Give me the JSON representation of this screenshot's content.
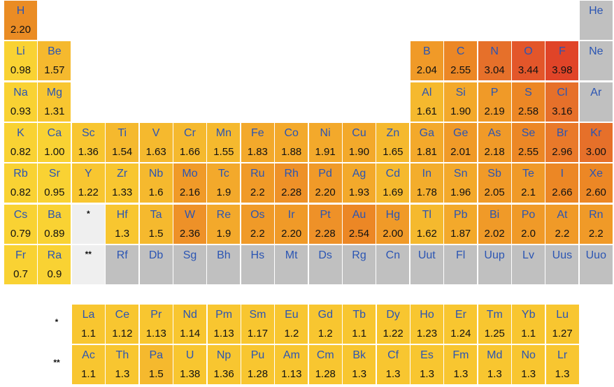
{
  "grid_rows": [
    [
      {
        "s": "H",
        "v": "2.20",
        "c": "#ea8c24"
      },
      {},
      {},
      {},
      {},
      {},
      {},
      {},
      {},
      {},
      {},
      {},
      {},
      {},
      {},
      {},
      {},
      {
        "s": "He",
        "c": "#c0c0c0"
      }
    ],
    [
      {
        "s": "Li",
        "v": "0.98",
        "c": "#f9d233"
      },
      {
        "s": "Be",
        "v": "1.57",
        "c": "#f5b92e"
      },
      {},
      {},
      {},
      {},
      {},
      {},
      {},
      {},
      {},
      {},
      {
        "s": "B",
        "v": "2.04",
        "c": "#f09a28"
      },
      {
        "s": "C",
        "v": "2.55",
        "c": "#ec8725"
      },
      {
        "s": "N",
        "v": "3.04",
        "c": "#e6702a"
      },
      {
        "s": "O",
        "v": "3.44",
        "c": "#e3562a"
      },
      {
        "s": "F",
        "v": "3.98",
        "c": "#e04428"
      },
      {
        "s": "Ne",
        "c": "#c0c0c0"
      }
    ],
    [
      {
        "s": "Na",
        "v": "0.93",
        "c": "#f9d233"
      },
      {
        "s": "Mg",
        "v": "1.31",
        "c": "#f8c630"
      },
      {},
      {},
      {},
      {},
      {},
      {},
      {},
      {},
      {},
      {},
      {
        "s": "Al",
        "v": "1.61",
        "c": "#f5b92e"
      },
      {
        "s": "Si",
        "v": "1.90",
        "c": "#f3a92b"
      },
      {
        "s": "P",
        "v": "2.19",
        "c": "#f09a28"
      },
      {
        "s": "S",
        "v": "2.58",
        "c": "#ec8725"
      },
      {
        "s": "Cl",
        "v": "3.16",
        "c": "#e6702a"
      },
      {
        "s": "Ar",
        "c": "#c0c0c0"
      }
    ],
    [
      {
        "s": "K",
        "v": "0.82",
        "c": "#f9d233"
      },
      {
        "s": "Ca",
        "v": "1.00",
        "c": "#f9d233"
      },
      {
        "s": "Sc",
        "v": "1.36",
        "c": "#f8c630"
      },
      {
        "s": "Ti",
        "v": "1.54",
        "c": "#f5b92e"
      },
      {
        "s": "V",
        "v": "1.63",
        "c": "#f5b92e"
      },
      {
        "s": "Cr",
        "v": "1.66",
        "c": "#f5b92e"
      },
      {
        "s": "Mn",
        "v": "1.55",
        "c": "#f5b92e"
      },
      {
        "s": "Fe",
        "v": "1.83",
        "c": "#f3a92b"
      },
      {
        "s": "Co",
        "v": "1.88",
        "c": "#f3a92b"
      },
      {
        "s": "Ni",
        "v": "1.91",
        "c": "#f3a92b"
      },
      {
        "s": "Cu",
        "v": "1.90",
        "c": "#f3a92b"
      },
      {
        "s": "Zn",
        "v": "1.65",
        "c": "#f5b92e"
      },
      {
        "s": "Ga",
        "v": "1.81",
        "c": "#f3a92b"
      },
      {
        "s": "Ge",
        "v": "2.01",
        "c": "#f09a28"
      },
      {
        "s": "As",
        "v": "2.18",
        "c": "#f09a28"
      },
      {
        "s": "Se",
        "v": "2.55",
        "c": "#ec8725"
      },
      {
        "s": "Br",
        "v": "2.96",
        "c": "#e9792a"
      },
      {
        "s": "Kr",
        "v": "3.00",
        "c": "#e6702a"
      }
    ],
    [
      {
        "s": "Rb",
        "v": "0.82",
        "c": "#f9d233"
      },
      {
        "s": "Sr",
        "v": "0.95",
        "c": "#f9d233"
      },
      {
        "s": "Y",
        "v": "1.22",
        "c": "#f8c630"
      },
      {
        "s": "Zr",
        "v": "1.33",
        "c": "#f8c630"
      },
      {
        "s": "Nb",
        "v": "1.6",
        "c": "#f5b92e"
      },
      {
        "s": "Mo",
        "v": "2.16",
        "c": "#f09a28"
      },
      {
        "s": "Tc",
        "v": "1.9",
        "c": "#f3a92b"
      },
      {
        "s": "Ru",
        "v": "2.2",
        "c": "#f09a28"
      },
      {
        "s": "Rh",
        "v": "2.28",
        "c": "#ee9128"
      },
      {
        "s": "Pd",
        "v": "2.20",
        "c": "#f09a28"
      },
      {
        "s": "Ag",
        "v": "1.93",
        "c": "#f3a92b"
      },
      {
        "s": "Cd",
        "v": "1.69",
        "c": "#f5b92e"
      },
      {
        "s": "In",
        "v": "1.78",
        "c": "#f3ad2c"
      },
      {
        "s": "Sn",
        "v": "1.96",
        "c": "#f3a92b"
      },
      {
        "s": "Sb",
        "v": "2.05",
        "c": "#f09a28"
      },
      {
        "s": "Te",
        "v": "2.1",
        "c": "#f09a28"
      },
      {
        "s": "I",
        "v": "2.66",
        "c": "#ec8725"
      },
      {
        "s": "Xe",
        "v": "2.60",
        "c": "#ec8725"
      }
    ],
    [
      {
        "s": "Cs",
        "v": "0.79",
        "c": "#f9d233"
      },
      {
        "s": "Ba",
        "v": "0.89",
        "c": "#f9d233"
      },
      {
        "s": "*",
        "c": "#efefef",
        "m": true
      },
      {
        "s": "Hf",
        "v": "1.3",
        "c": "#f8c630"
      },
      {
        "s": "Ta",
        "v": "1.5",
        "c": "#f5b92e"
      },
      {
        "s": "W",
        "v": "2.36",
        "c": "#ee9128"
      },
      {
        "s": "Re",
        "v": "1.9",
        "c": "#f3a92b"
      },
      {
        "s": "Os",
        "v": "2.2",
        "c": "#f09a28"
      },
      {
        "s": "Ir",
        "v": "2.20",
        "c": "#f09a28"
      },
      {
        "s": "Pt",
        "v": "2.28",
        "c": "#ee9128"
      },
      {
        "s": "Au",
        "v": "2.54",
        "c": "#ec8725"
      },
      {
        "s": "Hg",
        "v": "2.00",
        "c": "#f09a28"
      },
      {
        "s": "Tl",
        "v": "1.62",
        "c": "#f5b92e"
      },
      {
        "s": "Pb",
        "v": "1.87",
        "c": "#f3a92b"
      },
      {
        "s": "Bi",
        "v": "2.02",
        "c": "#f09a28"
      },
      {
        "s": "Po",
        "v": "2.0",
        "c": "#f09a28"
      },
      {
        "s": "At",
        "v": "2.2",
        "c": "#f09a28"
      },
      {
        "s": "Rn",
        "v": "2.2",
        "c": "#f09a28"
      }
    ],
    [
      {
        "s": "Fr",
        "v": "0.7",
        "c": "#f9d233"
      },
      {
        "s": "Ra",
        "v": "0.9",
        "c": "#f9d233"
      },
      {
        "s": "**",
        "c": "#efefef",
        "m": true
      },
      {
        "s": "Rf",
        "c": "#c0c0c0"
      },
      {
        "s": "Db",
        "c": "#c0c0c0"
      },
      {
        "s": "Sg",
        "c": "#c0c0c0"
      },
      {
        "s": "Bh",
        "c": "#c0c0c0"
      },
      {
        "s": "Hs",
        "c": "#c0c0c0"
      },
      {
        "s": "Mt",
        "c": "#c0c0c0"
      },
      {
        "s": "Ds",
        "c": "#c0c0c0"
      },
      {
        "s": "Rg",
        "c": "#c0c0c0"
      },
      {
        "s": "Cn",
        "c": "#c0c0c0"
      },
      {
        "s": "Uut",
        "c": "#c0c0c0"
      },
      {
        "s": "Fl",
        "c": "#c0c0c0"
      },
      {
        "s": "Uup",
        "c": "#c0c0c0"
      },
      {
        "s": "Lv",
        "c": "#c0c0c0"
      },
      {
        "s": "Uus",
        "c": "#c0c0c0"
      },
      {
        "s": "Uuo",
        "c": "#c0c0c0"
      }
    ]
  ],
  "series_rows": [
    {
      "marker": "*",
      "cells": [
        {
          "s": "La",
          "v": "1.1",
          "c": "#f8c630"
        },
        {
          "s": "Ce",
          "v": "1.12",
          "c": "#f8c630"
        },
        {
          "s": "Pr",
          "v": "1.13",
          "c": "#f8c630"
        },
        {
          "s": "Nd",
          "v": "1.14",
          "c": "#f8c630"
        },
        {
          "s": "Pm",
          "v": "1.13",
          "c": "#f8c630"
        },
        {
          "s": "Sm",
          "v": "1.17",
          "c": "#f8c630"
        },
        {
          "s": "Eu",
          "v": "1.2",
          "c": "#f8c630"
        },
        {
          "s": "Gd",
          "v": "1.2",
          "c": "#f8c630"
        },
        {
          "s": "Tb",
          "v": "1.1",
          "c": "#f8c630"
        },
        {
          "s": "Dy",
          "v": "1.22",
          "c": "#f8c630"
        },
        {
          "s": "Ho",
          "v": "1.23",
          "c": "#f8c630"
        },
        {
          "s": "Er",
          "v": "1.24",
          "c": "#f8c630"
        },
        {
          "s": "Tm",
          "v": "1.25",
          "c": "#f8c630"
        },
        {
          "s": "Yb",
          "v": "1.1",
          "c": "#f8c630"
        },
        {
          "s": "Lu",
          "v": "1.27",
          "c": "#f8c630"
        }
      ]
    },
    {
      "marker": "**",
      "cells": [
        {
          "s": "Ac",
          "v": "1.1",
          "c": "#f8c630"
        },
        {
          "s": "Th",
          "v": "1.3",
          "c": "#f8c630"
        },
        {
          "s": "Pa",
          "v": "1.5",
          "c": "#f5b92e"
        },
        {
          "s": "U",
          "v": "1.38",
          "c": "#f8c630"
        },
        {
          "s": "Np",
          "v": "1.36",
          "c": "#f8c630"
        },
        {
          "s": "Pu",
          "v": "1.28",
          "c": "#f8c630"
        },
        {
          "s": "Am",
          "v": "1.13",
          "c": "#f8c630"
        },
        {
          "s": "Cm",
          "v": "1.28",
          "c": "#f8c630"
        },
        {
          "s": "Bk",
          "v": "1.3",
          "c": "#f8c630"
        },
        {
          "s": "Cf",
          "v": "1.3",
          "c": "#f8c630"
        },
        {
          "s": "Es",
          "v": "1.3",
          "c": "#f8c630"
        },
        {
          "s": "Fm",
          "v": "1.3",
          "c": "#f8c630"
        },
        {
          "s": "Md",
          "v": "1.3",
          "c": "#f8c630"
        },
        {
          "s": "No",
          "v": "1.3",
          "c": "#f8c630"
        },
        {
          "s": "Lr",
          "v": "1.3",
          "c": "#f8c630"
        }
      ]
    }
  ]
}
